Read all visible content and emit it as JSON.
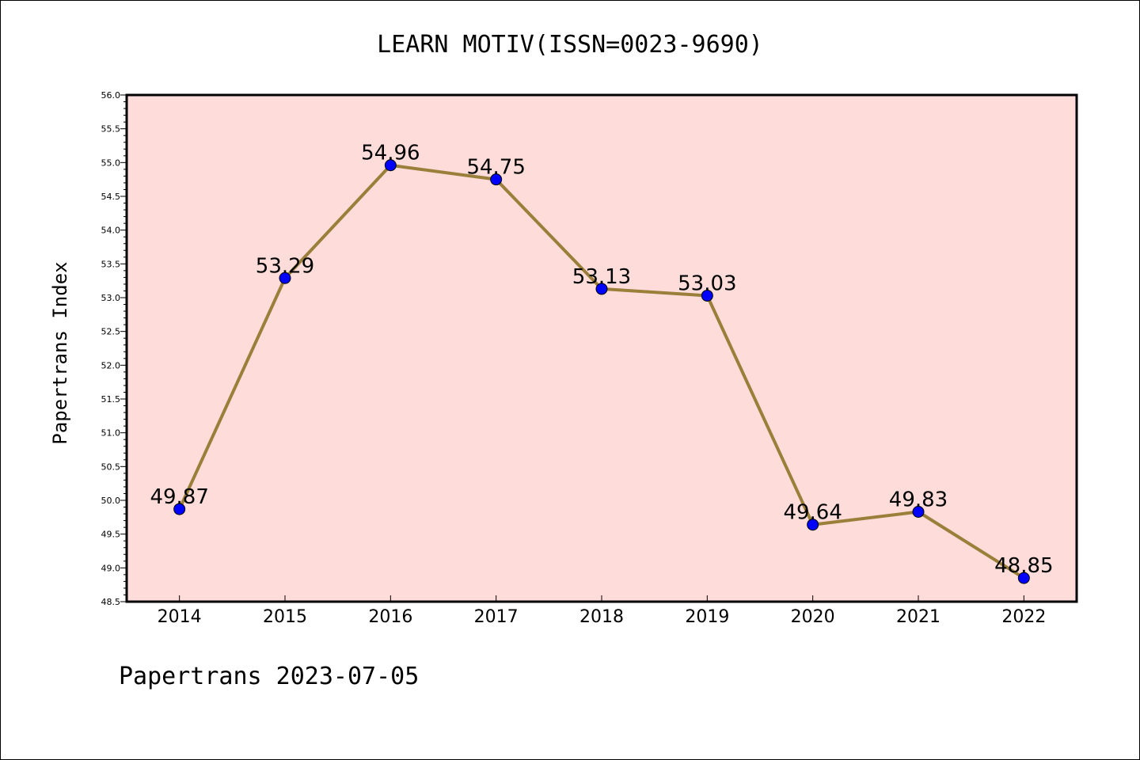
{
  "chart_data": {
    "type": "line",
    "title": "LEARN MOTIV(ISSN=0023-9690)",
    "ylabel": "Papertrans Index",
    "xlabel": "",
    "footer": "Papertrans 2023-07-05",
    "categories": [
      "2014",
      "2015",
      "2016",
      "2017",
      "2018",
      "2019",
      "2020",
      "2021",
      "2022"
    ],
    "values": [
      49.87,
      53.29,
      54.96,
      54.75,
      53.13,
      53.03,
      49.64,
      49.83,
      48.85
    ],
    "data_labels": [
      "49.87",
      "53.29",
      "54.96",
      "54.75",
      "53.13",
      "53.03",
      "49.64",
      "49.83",
      "48.85"
    ],
    "ylim": [
      48.5,
      56.0
    ],
    "yticks": [
      "48.5",
      "49.0",
      "49.5",
      "50.0",
      "50.5",
      "51.0",
      "51.5",
      "52.0",
      "52.5",
      "53.0",
      "53.5",
      "54.0",
      "54.5",
      "55.0",
      "55.5",
      "56.0"
    ],
    "grid": false,
    "colors": {
      "plot_background": "#fddcd9",
      "line": "#9a7f3a",
      "marker": "#0000ff",
      "axes": "#000000"
    }
  }
}
